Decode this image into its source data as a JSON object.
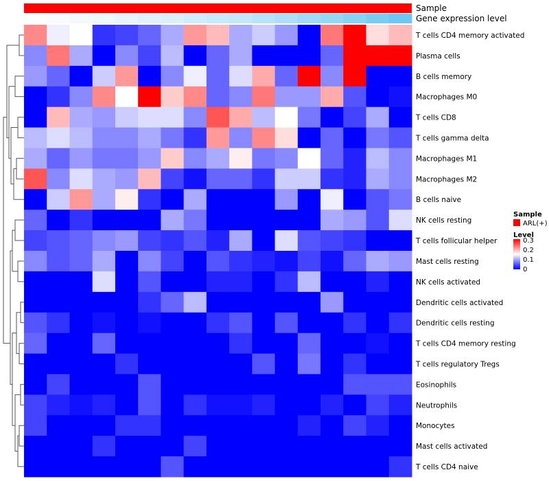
{
  "chart_data": {
    "type": "heatmap",
    "annotations": [
      "Sample",
      "Gene expression level"
    ],
    "annotation_colors": {
      "sample": "#ff0000"
    },
    "expression_level_ramp": [
      0.02,
      0.04,
      0.07,
      0.1,
      0.14,
      0.18,
      0.22,
      0.27,
      0.32,
      0.36,
      0.42,
      0.48,
      0.55,
      0.62,
      0.7,
      0.78,
      0.86
    ],
    "rows": [
      "T cells CD4 memory activated",
      "Plasma cells",
      "B cells memory",
      "Macrophages M0",
      "T cells CD8",
      "T cells gamma delta",
      "Macrophages M1",
      "Macrophages M2",
      "B cells naive",
      "NK cells resting",
      "T cells follicular helper",
      "Mast cells resting",
      "NK cells activated",
      "Dendritic cells activated",
      "Dendritic cells resting",
      "T cells CD4 memory resting",
      "T cells regulatory  Tregs",
      "Eosinophils",
      "Neutrophils",
      "Monocytes",
      "Mast cells activated",
      "T cells CD4 naive"
    ],
    "values": [
      [
        0.22,
        0.14,
        0.15,
        0.03,
        0.04,
        0.06,
        0.1,
        0.21,
        0.19,
        0.1,
        0.12,
        0.09,
        0.0,
        0.23,
        0.3,
        0.17,
        0.19
      ],
      [
        0.08,
        0.23,
        0.1,
        0.0,
        0.08,
        0.04,
        0.11,
        0.0,
        0.06,
        0.1,
        0.0,
        0.0,
        0.0,
        0.06,
        0.3,
        0.3,
        0.3
      ],
      [
        0.09,
        0.06,
        0.0,
        0.12,
        0.21,
        0.0,
        0.08,
        0.14,
        0.06,
        0.13,
        0.2,
        0.06,
        0.3,
        0.08,
        0.3,
        0.0,
        0.0
      ],
      [
        0.0,
        0.03,
        0.08,
        0.22,
        0.15,
        0.3,
        0.18,
        0.22,
        0.06,
        0.08,
        0.23,
        0.09,
        0.09,
        0.2,
        0.05,
        0.0,
        0.01
      ],
      [
        0.0,
        0.19,
        0.1,
        0.09,
        0.12,
        0.13,
        0.13,
        0.08,
        0.25,
        0.2,
        0.11,
        0.15,
        0.07,
        0.0,
        0.04,
        0.1,
        0.0
      ],
      [
        0.11,
        0.13,
        0.11,
        0.08,
        0.08,
        0.1,
        0.07,
        0.03,
        0.21,
        0.08,
        0.22,
        0.17,
        0.0,
        0.06,
        0.0,
        0.07,
        0.05
      ],
      [
        0.1,
        0.06,
        0.09,
        0.07,
        0.07,
        0.09,
        0.18,
        0.08,
        0.1,
        0.16,
        0.07,
        0.08,
        0.15,
        0.06,
        0.02,
        0.11,
        0.08
      ],
      [
        0.25,
        0.08,
        0.13,
        0.1,
        0.09,
        0.19,
        0.04,
        0.01,
        0.06,
        0.06,
        0.03,
        0.12,
        0.12,
        0.03,
        0.02,
        0.1,
        0.08
      ],
      [
        0.0,
        0.12,
        0.21,
        0.1,
        0.16,
        0.03,
        0.0,
        0.1,
        0.0,
        0.0,
        0.0,
        0.09,
        0.0,
        0.14,
        0.0,
        0.05,
        0.07
      ],
      [
        0.06,
        0.0,
        0.03,
        0.0,
        0.0,
        0.0,
        0.1,
        0.07,
        0.0,
        0.0,
        0.0,
        0.0,
        0.0,
        0.1,
        0.09,
        0.05,
        0.13
      ],
      [
        0.04,
        0.05,
        0.06,
        0.08,
        0.09,
        0.04,
        0.03,
        0.05,
        0.02,
        0.1,
        0.0,
        0.13,
        0.05,
        0.04,
        0.03,
        0.0,
        0.0
      ],
      [
        0.08,
        0.05,
        0.06,
        0.1,
        0.0,
        0.08,
        0.04,
        0.0,
        0.05,
        0.03,
        0.02,
        0.01,
        0.04,
        0.01,
        0.06,
        0.1,
        0.09
      ],
      [
        0.0,
        0.0,
        0.0,
        0.13,
        0.0,
        0.05,
        0.0,
        0.0,
        0.02,
        0.02,
        0.0,
        0.03,
        0.11,
        0.0,
        0.0,
        0.02,
        0.0
      ],
      [
        0.0,
        0.0,
        0.0,
        0.0,
        0.0,
        0.03,
        0.06,
        0.11,
        0.0,
        0.0,
        0.0,
        0.0,
        0.0,
        0.09,
        0.0,
        0.0,
        0.0
      ],
      [
        0.05,
        0.03,
        0.0,
        0.01,
        0.0,
        0.01,
        0.0,
        0.0,
        0.03,
        0.05,
        0.0,
        0.05,
        0.0,
        0.0,
        0.03,
        0.0,
        0.03
      ],
      [
        0.06,
        0.0,
        0.0,
        0.06,
        0.0,
        0.0,
        0.0,
        0.0,
        0.0,
        0.03,
        0.0,
        0.0,
        0.06,
        0.0,
        0.0,
        0.01,
        0.0
      ],
      [
        0.0,
        0.0,
        0.0,
        0.0,
        0.03,
        0.0,
        0.0,
        0.0,
        0.0,
        0.0,
        0.05,
        0.0,
        0.07,
        0.0,
        0.03,
        0.0,
        0.0
      ],
      [
        0.0,
        0.04,
        0.0,
        0.0,
        0.0,
        0.05,
        0.0,
        0.0,
        0.0,
        0.0,
        0.0,
        0.0,
        0.0,
        0.0,
        0.05,
        0.05,
        0.05
      ],
      [
        0.04,
        0.02,
        0.01,
        0.02,
        0.0,
        0.05,
        0.0,
        0.03,
        0.01,
        0.01,
        0.02,
        0.0,
        0.0,
        0.02,
        0.0,
        0.04,
        0.02
      ],
      [
        0.04,
        0.0,
        0.0,
        0.0,
        0.03,
        0.03,
        0.0,
        0.0,
        0.0,
        0.0,
        0.0,
        0.0,
        0.02,
        0.0,
        0.04,
        0.02,
        0.0
      ],
      [
        0.0,
        0.0,
        0.0,
        0.03,
        0.0,
        0.0,
        0.0,
        0.04,
        0.0,
        0.0,
        0.0,
        0.0,
        0.0,
        0.0,
        0.0,
        0.0,
        0.0
      ],
      [
        0.0,
        0.0,
        0.0,
        0.0,
        0.0,
        0.0,
        0.05,
        0.0,
        0.0,
        0.0,
        0.0,
        0.0,
        0.0,
        0.0,
        0.0,
        0.0,
        0.03
      ]
    ],
    "color_scale": {
      "min": 0,
      "max": 0.3,
      "low_color": "#0000ff",
      "mid_color": "#ffffff",
      "high_color": "#ff0000",
      "mid_value": 0.15
    },
    "legend": {
      "sample_title": "Sample",
      "sample_entry": "ARL(+)",
      "level_title": "Level",
      "level_ticks": [
        "0.3",
        "0.2",
        "0.1",
        "0"
      ]
    }
  }
}
